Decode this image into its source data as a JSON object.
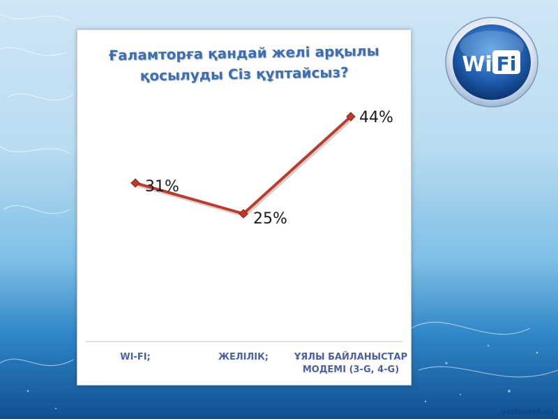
{
  "chart_data": {
    "type": "line",
    "title_lines": [
      "Ғаламторға қандай желі арқылы",
      "қосылуды Сіз  құптайсыз?"
    ],
    "categories": [
      [
        "WI-FI;"
      ],
      [
        "ЖЕЛІЛІК;"
      ],
      [
        "ҰЯЛЫ БАЙЛАНЫСТАР",
        "МОДЕМІ  (3-G, 4-G)"
      ]
    ],
    "values": [
      31,
      25,
      44
    ],
    "data_labels": [
      "31%",
      "25%",
      "44%"
    ],
    "value_unit": "%",
    "ylim": [
      0,
      50
    ],
    "grid": false,
    "legend": "none",
    "line_color": "#c0392b",
    "marker_color": "#c0392b",
    "label_color": "#1a1a1a",
    "category_color": "#4a5fa8"
  },
  "badge": {
    "text_wi": "Wi",
    "text_fi": "Fi",
    "color": "#1f5fb0"
  },
  "watermark": "pedsovet.su"
}
